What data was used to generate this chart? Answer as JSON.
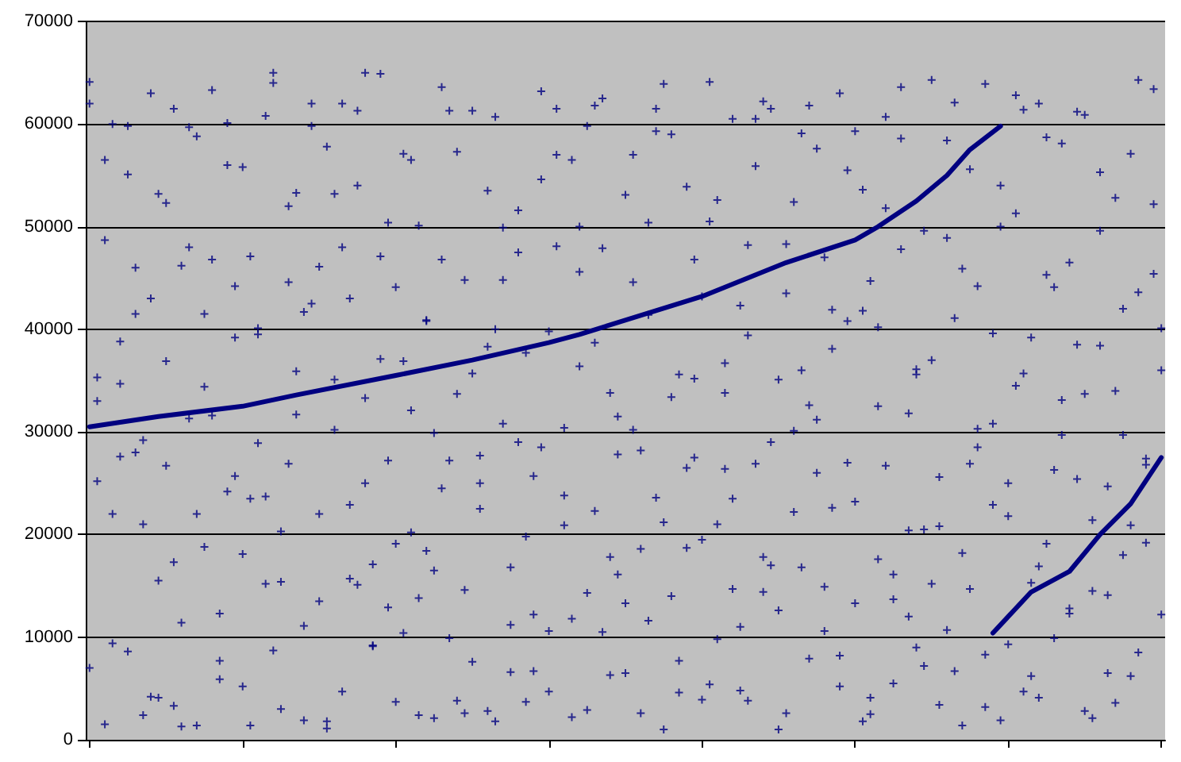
{
  "chart_data": {
    "type": "scatter",
    "categories": [
      null,
      null,
      null,
      null,
      null,
      null,
      null,
      null,
      null,
      null,
      null,
      null,
      null,
      null,
      null,
      null,
      null,
      null,
      null,
      null,
      null,
      null,
      null,
      null,
      null,
      null,
      null,
      null,
      null,
      null,
      null,
      null,
      null,
      null,
      null,
      null,
      null,
      null,
      null,
      null,
      null,
      null,
      null,
      null,
      null,
      null,
      null,
      null,
      null,
      null,
      null,
      null,
      null,
      null,
      null,
      null,
      null,
      null,
      null,
      null,
      null,
      null,
      null,
      null,
      null,
      null,
      null,
      null,
      null,
      null,
      null,
      null,
      null,
      null,
      null,
      null,
      null,
      null,
      null,
      null,
      null,
      null,
      null,
      null,
      null,
      null,
      null,
      null,
      null,
      null,
      null,
      null,
      null,
      null,
      null,
      null,
      null,
      null,
      null,
      null,
      null,
      null,
      null,
      null,
      null,
      null,
      null,
      null,
      null,
      null,
      null,
      null,
      null,
      null,
      null,
      null,
      null,
      null,
      null,
      null,
      null,
      null,
      null,
      null,
      null,
      null,
      null,
      null,
      null,
      null,
      null,
      null,
      null,
      null,
      null,
      null,
      null,
      null,
      null,
      null,
      null
    ],
    "ylim": [
      0,
      70000
    ],
    "yticks": [
      0,
      10000,
      20000,
      30000,
      40000,
      50000,
      60000,
      70000
    ],
    "grid": "y",
    "tick_labels": "y",
    "marker": "cross",
    "series": [
      {
        "color": "#000080",
        "values": [
          62000,
          35300,
          56500,
          22000,
          27600,
          59800,
          46000,
          29200,
          4200,
          53200,
          36900,
          61500,
          1300,
          59700,
          22000,
          41500,
          31600,
          12300,
          60100,
          25700,
          55800,
          1400,
          40100,
          23700,
          65000,
          15400,
          44600,
          35900,
          11100,
          59800,
          46100,
          1800,
          53200,
          62000,
          43000,
          15100,
          65000,
          9200,
          47100,
          50400,
          3700,
          36900,
          56500,
          2400,
          40900,
          16500,
          24500,
          61300,
          3800,
          44800,
          7600,
          27700,
          53500,
          40000,
          49900,
          11200,
          51600,
          19800,
          6700,
          28500,
          39800,
          61500,
          20900,
          56500,
          45600,
          14300,
          61800,
          10500,
          33800,
          27800,
          13300,
          57000,
          18600,
          50400,
          61500,
          1000,
          59000,
          7700,
          18700,
          35200,
          43200,
          64100,
          9800,
          26400,
          14700,
          42300,
          3800,
          55900,
          17800,
          61500,
          12600,
          2600,
          52400,
          36000,
          32600,
          57600,
          47000,
          22600,
          8200,
          40800,
          59300,
          1800,
          44700,
          17600,
          51800,
          5500,
          63600,
          12000,
          35600,
          20500,
          15200,
          3400,
          48900,
          62100,
          1400,
          26900,
          44200,
          8300,
          30800,
          54000,
          21800,
          62800,
          4700,
          39200,
          16900,
          58700,
          9900,
          33100,
          46500,
          25400,
          60900,
          2100,
          38400,
          14100,
          52800,
          29700,
          6200,
          43600,
          19200,
          63400,
          40100
        ]
      },
      {
        "color": "#000080",
        "values": [
          7000,
          33000,
          1500,
          60000,
          34700,
          8600,
          41500,
          21000,
          63000,
          4100,
          52300,
          17300,
          46200,
          31300,
          1400,
          18800,
          46800,
          7700,
          56000,
          44200,
          5200,
          23500,
          39500,
          15200,
          64000,
          3000,
          26900,
          53300,
          41700,
          62000,
          22000,
          1100,
          30200,
          48000,
          15700,
          61300,
          25000,
          9100,
          37100,
          12900,
          19100,
          57100,
          20200,
          13800,
          40800,
          29900,
          63600,
          9900,
          33700,
          2600,
          61300,
          25000,
          38300,
          1800,
          44800,
          6600,
          29000,
          37700,
          12200,
          63200,
          4700,
          57000,
          23800,
          11800,
          50000,
          2900,
          38700,
          62500,
          17800,
          31500,
          6500,
          44600,
          28200,
          11600,
          59300,
          21200,
          33400,
          4600,
          26500,
          46800,
          19500,
          5400,
          52600,
          36700,
          23500,
          4800,
          39400,
          60500,
          14400,
          29000,
          1000,
          43500,
          30100,
          16800,
          61800,
          26000,
          10600,
          38100,
          5200,
          55500,
          23200,
          41800,
          2500,
          32500,
          60700,
          13700,
          47800,
          20400,
          36100,
          7200,
          64300,
          25600,
          10700,
          41100,
          18200,
          55600,
          30300,
          3200,
          22900,
          50000,
          9300,
          34500,
          61400,
          15300,
          4100,
          45300,
          26300,
          58100,
          12800,
          38500,
          2800,
          21400,
          49600,
          6500,
          34000,
          18000,
          57100,
          8500,
          27400,
          45400,
          12200
        ]
      },
      {
        "color": "#000080",
        "values": [
          64100,
          25200,
          48700,
          9400,
          38800,
          55100,
          28000,
          2400,
          43000,
          15500,
          26700,
          3300,
          11400,
          48000,
          58800,
          34400,
          63300,
          5900,
          24200,
          39200,
          18100,
          47100,
          28900,
          60800,
          8700,
          20300,
          52000,
          31700,
          1900,
          42500,
          13500,
          57800,
          35100,
          4700,
          22900,
          54000,
          33300,
          17100,
          64900,
          27200,
          44100,
          10400,
          32100,
          50100,
          18400,
          2100,
          46800,
          27200,
          57300,
          14600,
          35700,
          22500,
          2800,
          60700,
          30800,
          16800,
          47500,
          3700,
          25700,
          54600,
          10600,
          48100,
          30400,
          2200,
          36400,
          59800,
          22300,
          47900,
          6300,
          16100,
          53100,
          30200,
          2600,
          41400,
          23600,
          63900,
          14000,
          35600,
          53900,
          27500,
          3900,
          50500,
          21000,
          33800,
          60500,
          11000,
          48200,
          26900,
          62200,
          17000,
          35100,
          48300,
          22200,
          59100,
          7900,
          31200,
          14900,
          41900,
          63000,
          27000,
          13300,
          53600,
          4100,
          40200,
          26700,
          16100,
          58600,
          31800,
          9000,
          49600,
          37000,
          20800,
          58400,
          6700,
          45900,
          14700,
          28500,
          63900,
          39600,
          1900,
          25000,
          51300,
          35700,
          6200,
          62000,
          19100,
          44100,
          29700,
          12300,
          61200,
          33700,
          14500,
          55300,
          24700,
          3600,
          42000,
          20900,
          64300,
          26800,
          52200,
          36000
        ]
      },
      {
        "type": "line",
        "marker": "none",
        "color": "#000080",
        "values": [
          30500,
          null,
          null,
          null,
          null,
          null,
          null,
          null,
          null,
          31500,
          null,
          null,
          null,
          null,
          null,
          null,
          null,
          null,
          null,
          null,
          32500,
          null,
          null,
          null,
          null,
          null,
          null,
          33600,
          null,
          null,
          null,
          null,
          null,
          null,
          null,
          null,
          null,
          null,
          null,
          null,
          35500,
          null,
          null,
          null,
          null,
          null,
          null,
          null,
          null,
          null,
          37000,
          null,
          null,
          null,
          null,
          null,
          null,
          null,
          null,
          null,
          38700,
          null,
          null,
          null,
          39500,
          null,
          null,
          null,
          null,
          null,
          null,
          null,
          null,
          null,
          null,
          null,
          null,
          null,
          null,
          null,
          43200,
          null,
          null,
          null,
          null,
          null,
          null,
          null,
          null,
          null,
          null,
          46500,
          null,
          null,
          null,
          null,
          null,
          null,
          null,
          null,
          48700,
          null,
          null,
          50000,
          null,
          null,
          null,
          null,
          52500,
          null,
          null,
          null,
          55000,
          null,
          null,
          57500,
          null,
          null,
          null,
          59800,
          null,
          null,
          null,
          null,
          null,
          null,
          null,
          null,
          null,
          null,
          null,
          null,
          null,
          null,
          null,
          null,
          null,
          null,
          null,
          null,
          null
        ]
      },
      {
        "type": "line",
        "marker": "none",
        "color": "#000080",
        "values": [
          null,
          null,
          null,
          null,
          null,
          null,
          null,
          null,
          null,
          null,
          null,
          null,
          null,
          null,
          null,
          null,
          null,
          null,
          null,
          null,
          null,
          null,
          null,
          null,
          null,
          null,
          null,
          null,
          null,
          null,
          null,
          null,
          null,
          null,
          null,
          null,
          null,
          null,
          null,
          null,
          null,
          null,
          null,
          null,
          null,
          null,
          null,
          null,
          null,
          null,
          null,
          null,
          null,
          null,
          null,
          null,
          null,
          null,
          null,
          null,
          null,
          null,
          null,
          null,
          null,
          null,
          null,
          null,
          null,
          null,
          null,
          null,
          null,
          null,
          null,
          null,
          null,
          null,
          null,
          null,
          null,
          null,
          null,
          null,
          null,
          null,
          null,
          null,
          null,
          null,
          null,
          null,
          null,
          null,
          null,
          null,
          null,
          null,
          null,
          null,
          null,
          null,
          null,
          null,
          null,
          null,
          null,
          null,
          null,
          null,
          null,
          null,
          null,
          null,
          null,
          null,
          null,
          null,
          10400,
          null,
          null,
          null,
          null,
          14400,
          null,
          null,
          null,
          null,
          16400,
          null,
          null,
          null,
          20000,
          null,
          null,
          null,
          23000,
          null,
          null,
          null,
          27500
        ]
      }
    ]
  }
}
